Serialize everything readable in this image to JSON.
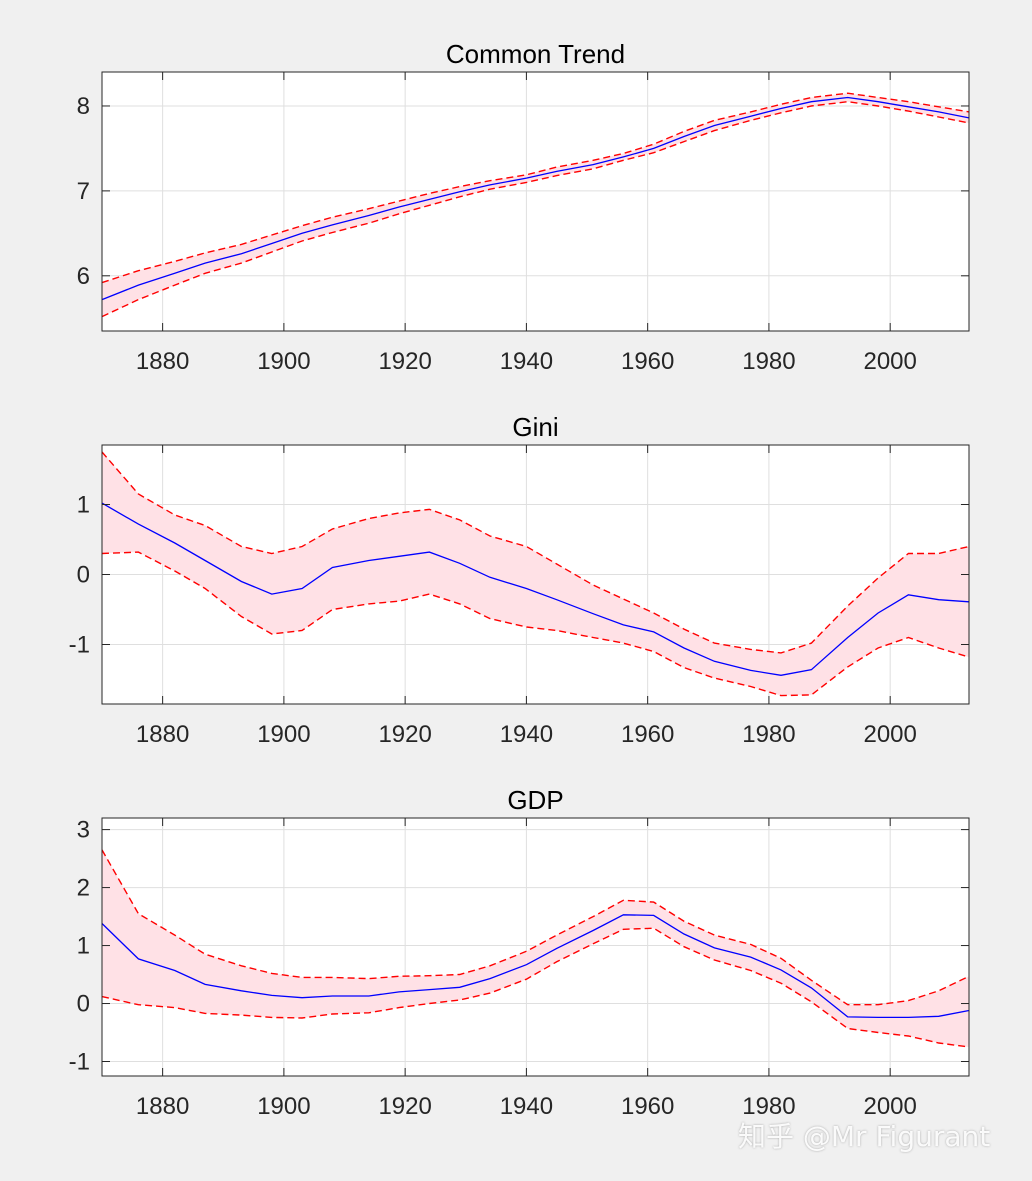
{
  "colors": {
    "figure_bg": "#f0f0f0",
    "axes_bg": "#ffffff",
    "grid": "#dfdfdf",
    "axis": "#262626",
    "median_line": "#0000ff",
    "band_line": "#ff0000",
    "band_fill": "#ffe1e6"
  },
  "watermark": "知乎 @Mr Figurant",
  "chart_data": [
    {
      "type": "line",
      "title": "Common Trend",
      "xlim": [
        1870,
        2013
      ],
      "ylim": [
        5.35,
        8.4
      ],
      "xticks": [
        1880,
        1900,
        1920,
        1940,
        1960,
        1980,
        2000
      ],
      "yticks": [
        6,
        7,
        8
      ],
      "ytick_labels": [
        "6",
        "7",
        "8"
      ],
      "x": [
        1870,
        1876,
        1882,
        1887,
        1893,
        1898,
        1903,
        1908,
        1914,
        1919,
        1924,
        1929,
        1934,
        1940,
        1945,
        1951,
        1956,
        1961,
        1966,
        1971,
        1977,
        1982,
        1987,
        1993,
        1998,
        2003,
        2008,
        2013
      ],
      "series": [
        {
          "name": "upper",
          "values": [
            5.92,
            6.06,
            6.17,
            6.27,
            6.37,
            6.48,
            6.59,
            6.69,
            6.79,
            6.88,
            6.97,
            7.05,
            7.12,
            7.19,
            7.28,
            7.36,
            7.44,
            7.55,
            7.7,
            7.83,
            7.93,
            8.02,
            8.1,
            8.15,
            8.1,
            8.05,
            7.99,
            7.93
          ]
        },
        {
          "name": "median",
          "values": [
            5.72,
            5.89,
            6.03,
            6.15,
            6.26,
            6.38,
            6.5,
            6.6,
            6.71,
            6.81,
            6.9,
            6.99,
            7.07,
            7.15,
            7.23,
            7.31,
            7.4,
            7.5,
            7.64,
            7.77,
            7.88,
            7.97,
            8.05,
            8.1,
            8.05,
            7.99,
            7.93,
            7.86
          ]
        },
        {
          "name": "lower",
          "values": [
            5.52,
            5.72,
            5.89,
            6.03,
            6.15,
            6.28,
            6.41,
            6.51,
            6.62,
            6.73,
            6.83,
            6.93,
            7.02,
            7.1,
            7.18,
            7.26,
            7.36,
            7.45,
            7.58,
            7.71,
            7.83,
            7.92,
            8.0,
            8.05,
            8.0,
            7.94,
            7.87,
            7.8
          ]
        }
      ]
    },
    {
      "type": "line",
      "title": "Gini",
      "xlim": [
        1870,
        2013
      ],
      "ylim": [
        -1.85,
        1.85
      ],
      "xticks": [
        1880,
        1900,
        1920,
        1940,
        1960,
        1980,
        2000
      ],
      "yticks": [
        1,
        0,
        -1
      ],
      "ytick_labels": [
        "1",
        "0",
        "-1"
      ],
      "x": [
        1870,
        1876,
        1882,
        1887,
        1893,
        1898,
        1903,
        1908,
        1914,
        1919,
        1924,
        1929,
        1934,
        1940,
        1945,
        1951,
        1956,
        1961,
        1966,
        1971,
        1977,
        1982,
        1987,
        1993,
        1998,
        2003,
        2008,
        2013
      ],
      "series": [
        {
          "name": "upper",
          "values": [
            1.75,
            1.15,
            0.85,
            0.7,
            0.4,
            0.3,
            0.4,
            0.65,
            0.8,
            0.88,
            0.93,
            0.78,
            0.55,
            0.4,
            0.15,
            -0.15,
            -0.35,
            -0.55,
            -0.78,
            -0.98,
            -1.07,
            -1.12,
            -0.98,
            -0.45,
            -0.05,
            0.3,
            0.3,
            0.4
          ]
        },
        {
          "name": "median",
          "values": [
            1.02,
            0.72,
            0.45,
            0.2,
            -0.1,
            -0.28,
            -0.2,
            0.1,
            0.2,
            0.26,
            0.32,
            0.16,
            -0.04,
            -0.2,
            -0.36,
            -0.56,
            -0.72,
            -0.82,
            -1.05,
            -1.24,
            -1.37,
            -1.44,
            -1.36,
            -0.9,
            -0.55,
            -0.29,
            -0.36,
            -0.39
          ]
        },
        {
          "name": "lower",
          "values": [
            0.3,
            0.32,
            0.05,
            -0.2,
            -0.6,
            -0.85,
            -0.8,
            -0.5,
            -0.42,
            -0.38,
            -0.28,
            -0.42,
            -0.63,
            -0.75,
            -0.8,
            -0.9,
            -0.98,
            -1.1,
            -1.33,
            -1.48,
            -1.6,
            -1.73,
            -1.72,
            -1.32,
            -1.05,
            -0.9,
            -1.05,
            -1.18
          ]
        }
      ]
    },
    {
      "type": "line",
      "title": "GDP",
      "xlim": [
        1870,
        2013
      ],
      "ylim": [
        -1.25,
        3.2
      ],
      "xticks": [
        1880,
        1900,
        1920,
        1940,
        1960,
        1980,
        2000
      ],
      "yticks": [
        3,
        2,
        1,
        0,
        -1
      ],
      "ytick_labels": [
        "3",
        "2",
        "1",
        "0",
        "-1"
      ],
      "x": [
        1870,
        1876,
        1882,
        1887,
        1893,
        1898,
        1903,
        1908,
        1914,
        1919,
        1924,
        1929,
        1934,
        1940,
        1945,
        1951,
        1956,
        1961,
        1966,
        1971,
        1977,
        1982,
        1987,
        1993,
        1998,
        2003,
        2008,
        2013
      ],
      "series": [
        {
          "name": "upper",
          "values": [
            2.65,
            1.55,
            1.18,
            0.85,
            0.65,
            0.52,
            0.45,
            0.45,
            0.43,
            0.47,
            0.48,
            0.5,
            0.65,
            0.9,
            1.18,
            1.5,
            1.78,
            1.75,
            1.42,
            1.18,
            1.02,
            0.78,
            0.4,
            -0.02,
            -0.02,
            0.05,
            0.22,
            0.47
          ]
        },
        {
          "name": "median",
          "values": [
            1.38,
            0.77,
            0.57,
            0.33,
            0.22,
            0.14,
            0.1,
            0.13,
            0.13,
            0.2,
            0.24,
            0.28,
            0.43,
            0.67,
            0.95,
            1.26,
            1.53,
            1.52,
            1.2,
            0.96,
            0.8,
            0.58,
            0.27,
            -0.23,
            -0.24,
            -0.24,
            -0.22,
            -0.12
          ]
        },
        {
          "name": "lower",
          "values": [
            0.12,
            -0.02,
            -0.07,
            -0.17,
            -0.2,
            -0.24,
            -0.25,
            -0.18,
            -0.16,
            -0.07,
            0.0,
            0.06,
            0.18,
            0.42,
            0.72,
            1.03,
            1.28,
            1.3,
            0.98,
            0.75,
            0.57,
            0.35,
            0.03,
            -0.43,
            -0.5,
            -0.56,
            -0.68,
            -0.75
          ]
        }
      ]
    }
  ]
}
